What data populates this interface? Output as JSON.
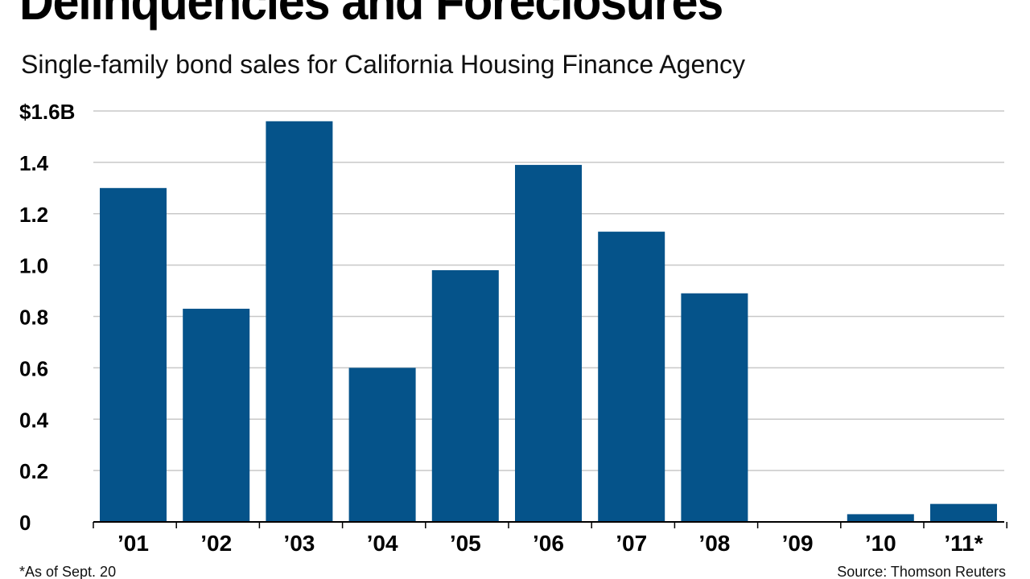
{
  "header": {
    "title": "Delinquencies and Foreclosures",
    "subtitle": "Single-family bond sales for California Housing Finance Agency"
  },
  "footer": {
    "footnote": "*As of Sept. 20",
    "source": "Source: Thomson Reuters"
  },
  "colors": {
    "bar": "#05538a",
    "grid": "#c8c8c8",
    "axis": "#000000"
  },
  "chart_data": {
    "type": "bar",
    "categories": [
      "’01",
      "’02",
      "’03",
      "’04",
      "’05",
      "’06",
      "’07",
      "’08",
      "’09",
      "’10",
      "’11*"
    ],
    "values": [
      1.3,
      0.83,
      1.56,
      0.6,
      0.98,
      1.39,
      1.13,
      0.89,
      0,
      0.03,
      0.07
    ],
    "y_ticks": [
      0,
      0.2,
      0.4,
      0.6,
      0.8,
      1.0,
      1.2,
      1.4,
      1.6
    ],
    "y_tick_labels": [
      "0",
      "0.2",
      "0.4",
      "0.6",
      "0.8",
      "1.0",
      "1.2",
      "1.4",
      "$1.6B"
    ],
    "ylim": [
      0,
      1.6
    ],
    "grid": true,
    "title": "Delinquencies and Foreclosures",
    "subtitle": "Single-family bond sales for California Housing Finance Agency",
    "xlabel": "",
    "ylabel": ""
  }
}
